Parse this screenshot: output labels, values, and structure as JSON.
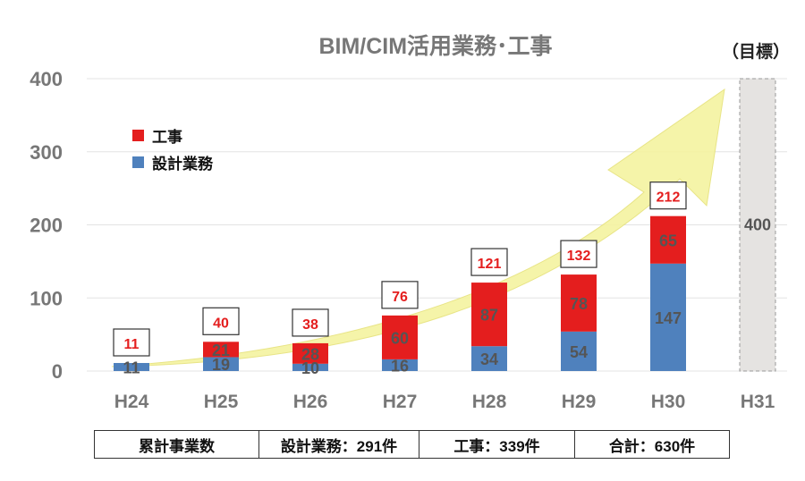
{
  "chart_data": {
    "type": "bar",
    "stacked": true,
    "title": "BIM/CIM活用業務･工事",
    "target_label": "（目標）",
    "categories": [
      "H24",
      "H25",
      "H26",
      "H27",
      "H28",
      "H29",
      "H30",
      "H31"
    ],
    "series": [
      {
        "name": "設計業務",
        "color": "#4f81bd",
        "values": [
          11,
          19,
          10,
          16,
          34,
          54,
          147,
          null
        ]
      },
      {
        "name": "工事",
        "color": "#e41e1e",
        "values": [
          0,
          21,
          28,
          60,
          87,
          78,
          65,
          null
        ]
      }
    ],
    "totals": [
      11,
      40,
      38,
      76,
      121,
      132,
      212,
      null
    ],
    "target": {
      "category": "H31",
      "value": 400,
      "label": "400"
    },
    "ylim": [
      0,
      400
    ],
    "yticks": [
      0,
      100,
      200,
      300,
      400
    ],
    "legend": {
      "position": "top-left",
      "items": [
        "工事",
        "設計業務"
      ]
    },
    "grid": true
  },
  "summary": {
    "label": "累計事業数",
    "design": "設計業務：291件",
    "construction": "工事：339件",
    "total": "合計：630件"
  }
}
